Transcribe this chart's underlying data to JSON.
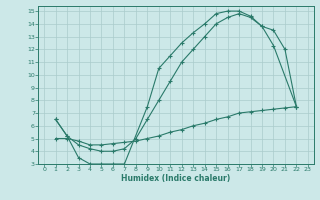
{
  "xlabel": "Humidex (Indice chaleur)",
  "bg_color": "#cce8e8",
  "grid_color": "#aacccc",
  "line_color": "#2a7a6a",
  "xlim": [
    -0.5,
    23.5
  ],
  "ylim": [
    3,
    15.4
  ],
  "xticks": [
    0,
    1,
    2,
    3,
    4,
    5,
    6,
    7,
    8,
    9,
    10,
    11,
    12,
    13,
    14,
    15,
    16,
    17,
    18,
    19,
    20,
    21,
    22,
    23
  ],
  "yticks": [
    3,
    4,
    5,
    6,
    7,
    8,
    9,
    10,
    11,
    12,
    13,
    14,
    15
  ],
  "line1_x": [
    1,
    2,
    3,
    4,
    5,
    6,
    7,
    9,
    10,
    11,
    12,
    13,
    14,
    15,
    16,
    17,
    18,
    19,
    20,
    22
  ],
  "line1_y": [
    6.5,
    5.2,
    3.5,
    3.0,
    3.0,
    3.0,
    3.0,
    7.5,
    10.5,
    11.5,
    12.5,
    13.3,
    14.0,
    14.8,
    15.0,
    15.0,
    14.6,
    13.8,
    12.3,
    7.5
  ],
  "line2_x": [
    1,
    2,
    3,
    4,
    5,
    6,
    7,
    8,
    9,
    10,
    11,
    12,
    13,
    14,
    15,
    16,
    17,
    18,
    19,
    20,
    21,
    22
  ],
  "line2_y": [
    6.5,
    5.2,
    4.5,
    4.2,
    4.0,
    4.0,
    4.2,
    5.0,
    6.5,
    8.0,
    9.5,
    11.0,
    12.0,
    13.0,
    14.0,
    14.5,
    14.8,
    14.5,
    13.8,
    13.5,
    12.0,
    7.5
  ],
  "line3_x": [
    1,
    2,
    3,
    4,
    5,
    6,
    7,
    8,
    9,
    10,
    11,
    12,
    13,
    14,
    15,
    16,
    17,
    18,
    19,
    20,
    21,
    22
  ],
  "line3_y": [
    5.0,
    5.0,
    4.8,
    4.5,
    4.5,
    4.6,
    4.7,
    4.8,
    5.0,
    5.2,
    5.5,
    5.7,
    6.0,
    6.2,
    6.5,
    6.7,
    7.0,
    7.1,
    7.2,
    7.3,
    7.4,
    7.5
  ]
}
